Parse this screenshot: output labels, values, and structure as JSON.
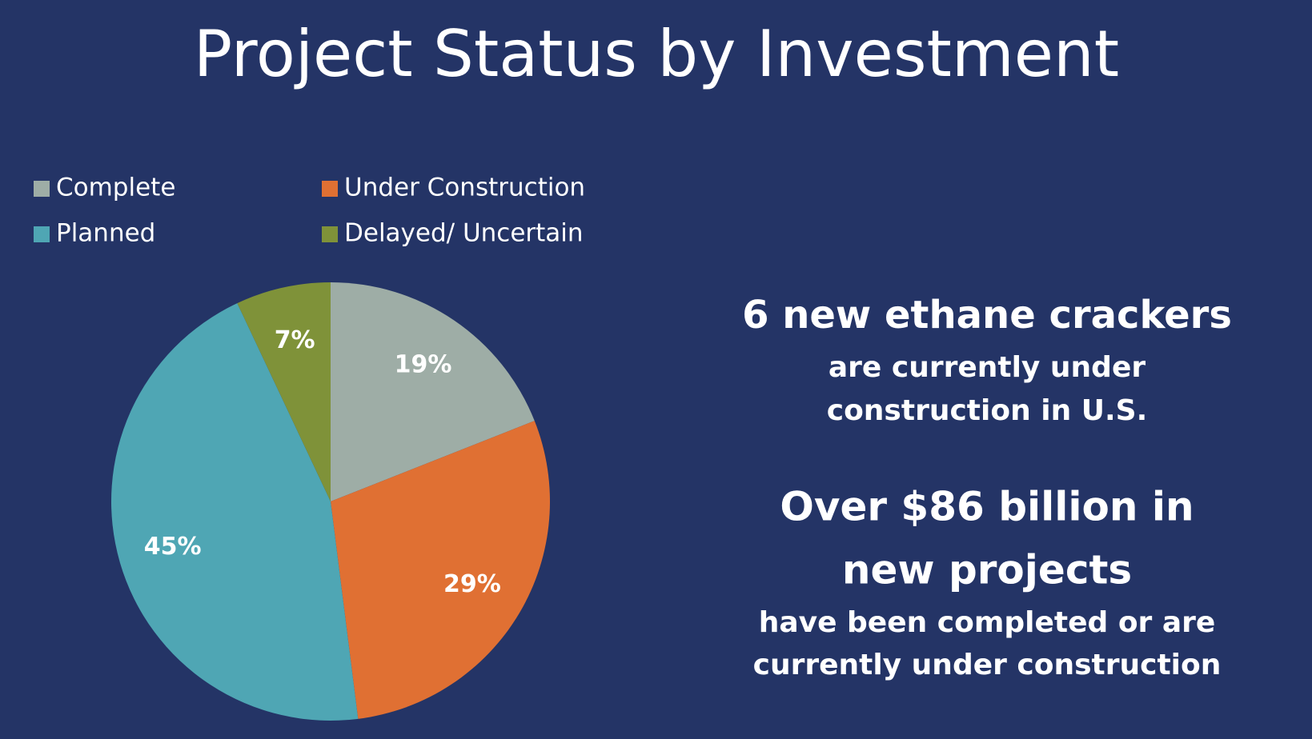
{
  "chart_data": {
    "type": "pie",
    "title": "Project Status by Investment",
    "categories": [
      "Complete",
      "Under Construction",
      "Planned",
      "Delayed/ Uncertain"
    ],
    "values": [
      19,
      29,
      45,
      7
    ],
    "value_labels": [
      "19%",
      "29%",
      "45%",
      "7%"
    ],
    "colors": [
      "#9eada6",
      "#e07033",
      "#4fa6b4",
      "#7f9239"
    ],
    "annotations": [
      "6 new ethane crackers",
      "are currently under",
      "construction in U.S.",
      "Over $86 billion in",
      "new projects",
      "have been completed or are",
      "currently under construction"
    ]
  }
}
